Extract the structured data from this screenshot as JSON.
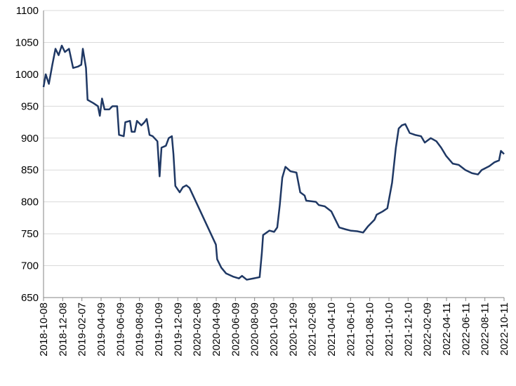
{
  "chart_data": {
    "type": "line",
    "x": [
      "2018-10-08",
      "2018-10-15",
      "2018-10-25",
      "2018-11-05",
      "2018-11-15",
      "2018-11-25",
      "2018-12-05",
      "2018-12-15",
      "2018-12-28",
      "2019-01-10",
      "2019-01-25",
      "2019-02-05",
      "2019-02-10",
      "2019-02-20",
      "2019-02-25",
      "2019-03-15",
      "2019-03-30",
      "2019-04-05",
      "2019-04-12",
      "2019-04-20",
      "2019-05-05",
      "2019-05-15",
      "2019-05-30",
      "2019-06-05",
      "2019-06-20",
      "2019-06-25",
      "2019-07-10",
      "2019-07-15",
      "2019-07-25",
      "2019-08-01",
      "2019-08-15",
      "2019-08-25",
      "2019-09-01",
      "2019-09-10",
      "2019-09-20",
      "2019-10-05",
      "2019-10-12",
      "2019-10-18",
      "2019-11-01",
      "2019-11-10",
      "2019-11-20",
      "2019-11-25",
      "2019-12-01",
      "2019-12-15",
      "2019-12-25",
      "2020-01-05",
      "2020-01-15",
      "2020-04-08",
      "2020-04-12",
      "2020-04-25",
      "2020-05-10",
      "2020-06-01",
      "2020-06-20",
      "2020-06-30",
      "2020-07-15",
      "2020-08-05",
      "2020-08-25",
      "2020-09-01",
      "2020-09-05",
      "2020-09-25",
      "2020-10-10",
      "2020-10-20",
      "2020-10-28",
      "2020-11-05",
      "2020-11-15",
      "2020-12-01",
      "2020-12-20",
      "2021-01-01",
      "2021-01-15",
      "2021-01-20",
      "2021-02-20",
      "2021-03-01",
      "2021-03-20",
      "2021-04-10",
      "2021-04-25",
      "2021-05-05",
      "2021-05-25",
      "2021-06-10",
      "2021-07-01",
      "2021-07-20",
      "2021-08-05",
      "2021-08-25",
      "2021-09-01",
      "2021-09-20",
      "2021-10-05",
      "2021-10-20",
      "2021-11-01",
      "2021-11-10",
      "2021-11-20",
      "2021-12-01",
      "2021-12-15",
      "2022-01-01",
      "2022-01-20",
      "2022-02-01",
      "2022-02-20",
      "2022-03-10",
      "2022-03-25",
      "2022-04-10",
      "2022-05-01",
      "2022-05-20",
      "2022-06-10",
      "2022-07-01",
      "2022-07-20",
      "2022-08-01",
      "2022-08-25",
      "2022-09-10",
      "2022-09-25",
      "2022-10-01",
      "2022-10-11"
    ],
    "series": [
      {
        "color": "#1f3864",
        "values": [
          980,
          1000,
          985,
          1015,
          1040,
          1030,
          1045,
          1035,
          1040,
          1010,
          1012,
          1015,
          1040,
          1010,
          960,
          955,
          950,
          935,
          962,
          945,
          945,
          950,
          950,
          905,
          903,
          925,
          927,
          910,
          910,
          927,
          920,
          925,
          930,
          905,
          903,
          895,
          840,
          885,
          888,
          900,
          903,
          875,
          825,
          815,
          823,
          826,
          822,
          733,
          710,
          697,
          688,
          683,
          680,
          684,
          678,
          680,
          682,
          720,
          748,
          755,
          753,
          760,
          795,
          838,
          855,
          848,
          846,
          815,
          810,
          802,
          800,
          795,
          793,
          785,
          770,
          760,
          757,
          755,
          754,
          752,
          762,
          772,
          780,
          785,
          790,
          830,
          885,
          915,
          920,
          922,
          908,
          905,
          903,
          893,
          900,
          895,
          885,
          872,
          860,
          858,
          850,
          845,
          843,
          850,
          856,
          862,
          865,
          880,
          875
        ]
      }
    ],
    "xlim": [
      "2018-10-08",
      "2022-10-11"
    ],
    "xticks": [
      "2018-10-08",
      "2018-12-08",
      "2019-02-07",
      "2019-04-09",
      "2019-06-09",
      "2019-08-09",
      "2019-10-09",
      "2019-12-09",
      "2020-02-08",
      "2020-04-09",
      "2020-06-09",
      "2020-08-09",
      "2020-10-09",
      "2020-12-09",
      "2021-02-08",
      "2021-04-10",
      "2021-06-10",
      "2021-08-10",
      "2021-10-10",
      "2021-12-10",
      "2022-02-09",
      "2022-04-11",
      "2022-06-11",
      "2022-08-11",
      "2022-10-11"
    ],
    "ylim": [
      650,
      1100
    ],
    "yticks": [
      650,
      700,
      750,
      800,
      850,
      900,
      950,
      1000,
      1050,
      1100
    ],
    "grid": true
  }
}
